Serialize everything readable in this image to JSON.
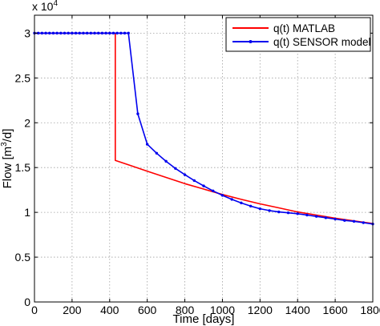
{
  "chart_data": {
    "type": "line",
    "title": "",
    "xlabel": "Time [days]",
    "ylabel_parts": {
      "prefix": "Flow [m",
      "sup": "3",
      "suffix": "/d]"
    },
    "xlim": [
      0,
      1800
    ],
    "ylim": [
      0,
      32000
    ],
    "y_multiplier": "x 10",
    "y_multiplier_exp": "4",
    "grid": true,
    "legend_position": "top-right",
    "x_ticks": [
      0,
      200,
      400,
      600,
      800,
      1000,
      1200,
      1400,
      1600,
      1800
    ],
    "x_tick_labels": [
      "0",
      "200",
      "400",
      "600",
      "800",
      "1000",
      "1200",
      "1400",
      "1600",
      "1800"
    ],
    "y_ticks": [
      0,
      5000,
      10000,
      15000,
      20000,
      25000,
      30000
    ],
    "y_tick_labels": [
      "0",
      "0.5",
      "1",
      "1.5",
      "2",
      "2.5",
      "3"
    ],
    "series": [
      {
        "name": "q(t) MATLAB",
        "color": "#ff0000",
        "marker": false,
        "x": [
          0,
          430,
          430,
          500,
          600,
          700,
          800,
          900,
          1000,
          1100,
          1200,
          1300,
          1400,
          1500,
          1600,
          1700,
          1800
        ],
        "y": [
          30000,
          30000,
          15800,
          15300,
          14600,
          13900,
          13200,
          12600,
          12000,
          11450,
          10950,
          10500,
          10050,
          9700,
          9350,
          9050,
          8750
        ]
      },
      {
        "name": "q(t) SENSOR model",
        "color": "#0000ee",
        "marker": true,
        "x": [
          0,
          20,
          40,
          60,
          80,
          100,
          120,
          140,
          160,
          180,
          200,
          220,
          240,
          260,
          280,
          300,
          320,
          340,
          360,
          380,
          400,
          420,
          440,
          460,
          480,
          500,
          550,
          600,
          650,
          700,
          750,
          800,
          850,
          900,
          950,
          1000,
          1050,
          1100,
          1150,
          1200,
          1250,
          1300,
          1350,
          1400,
          1450,
          1500,
          1550,
          1600,
          1650,
          1700,
          1750,
          1800
        ],
        "y": [
          30000,
          30000,
          30000,
          30000,
          30000,
          30000,
          30000,
          30000,
          30000,
          30000,
          30000,
          30000,
          30000,
          30000,
          30000,
          30000,
          30000,
          30000,
          30000,
          30000,
          30000,
          30000,
          30000,
          30000,
          30000,
          30000,
          21000,
          17600,
          16600,
          15700,
          14900,
          14200,
          13550,
          12950,
          12400,
          11900,
          11450,
          11050,
          10700,
          10400,
          10200,
          10050,
          9950,
          9850,
          9700,
          9550,
          9400,
          9250,
          9100,
          9000,
          8850,
          8700
        ]
      }
    ]
  }
}
